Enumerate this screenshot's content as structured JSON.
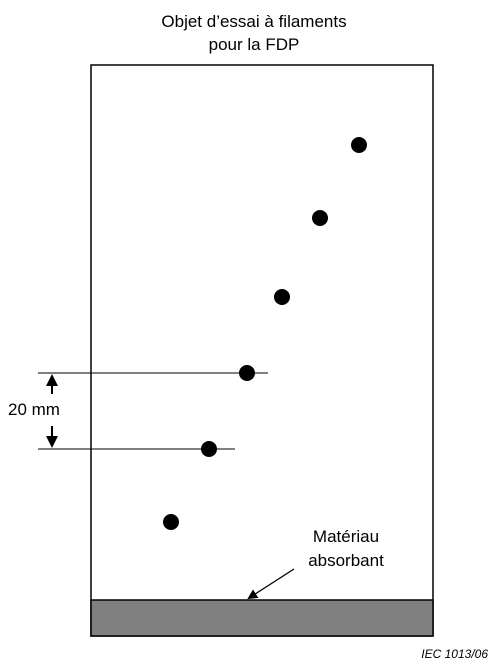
{
  "title": {
    "line1": "Objet d’essai à filaments",
    "line2": "pour la FDP"
  },
  "dimension": {
    "label": "20 mm"
  },
  "absorbent": {
    "line1": "Matériau",
    "line2": "absorbant",
    "color": "#808080"
  },
  "reference": "IEC 1013/06"
}
